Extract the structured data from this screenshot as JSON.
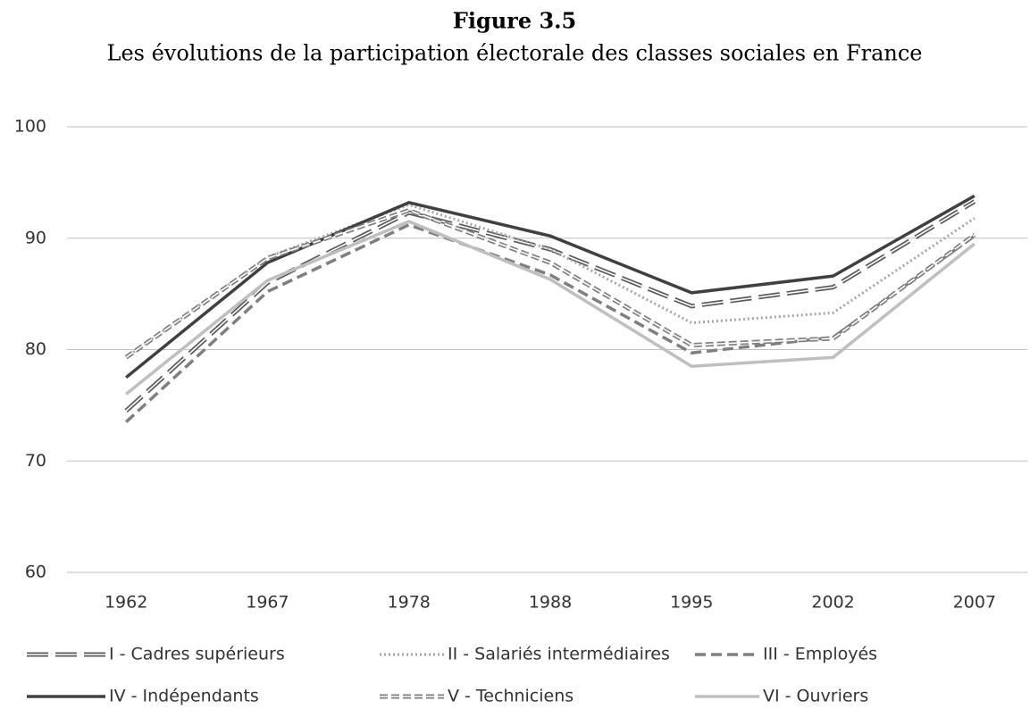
{
  "chart_data": {
    "type": "line",
    "title": "Figure 3.5",
    "subtitle": "Les évolutions de la participation électorale des classes sociales en France",
    "categories": [
      "1962",
      "1967",
      "1978",
      "1988",
      "1995",
      "2002",
      "2007"
    ],
    "ylim": [
      60,
      100
    ],
    "yticks": [
      60,
      70,
      80,
      90,
      100
    ],
    "grid": true,
    "series": [
      {
        "name": "I - Cadres supérieurs",
        "color": "#595959",
        "style": "double-long-dash",
        "values": [
          74.5,
          86,
          92.3,
          89,
          83.9,
          85.6,
          93.3
        ]
      },
      {
        "name": "II - Salariés intermédiaires",
        "color": "#a6a6a6",
        "style": "dotted",
        "values": [
          79.3,
          88.3,
          93,
          89,
          82.4,
          83.3,
          91.8
        ]
      },
      {
        "name": "III - Employés",
        "color": "#7f7f7f",
        "style": "dashed",
        "values": [
          73.5,
          85.2,
          91.2,
          86.7,
          79.7,
          81.1,
          90.2
        ]
      },
      {
        "name": "IV - Indépendants",
        "color": "#404040",
        "style": "solid",
        "values": [
          77.5,
          87.8,
          93.2,
          90.2,
          85.1,
          86.6,
          93.8
        ]
      },
      {
        "name": "V - Techniciens",
        "color": "#7f7f7f",
        "style": "double-short-dash",
        "values": [
          79.3,
          88.2,
          92.5,
          87.8,
          80.4,
          81,
          90.3
        ]
      },
      {
        "name": "VI - Ouvriers",
        "color": "#bfbfbf",
        "style": "solid",
        "values": [
          76,
          86.2,
          91.5,
          86.3,
          78.5,
          79.3,
          89.5
        ]
      }
    ]
  }
}
